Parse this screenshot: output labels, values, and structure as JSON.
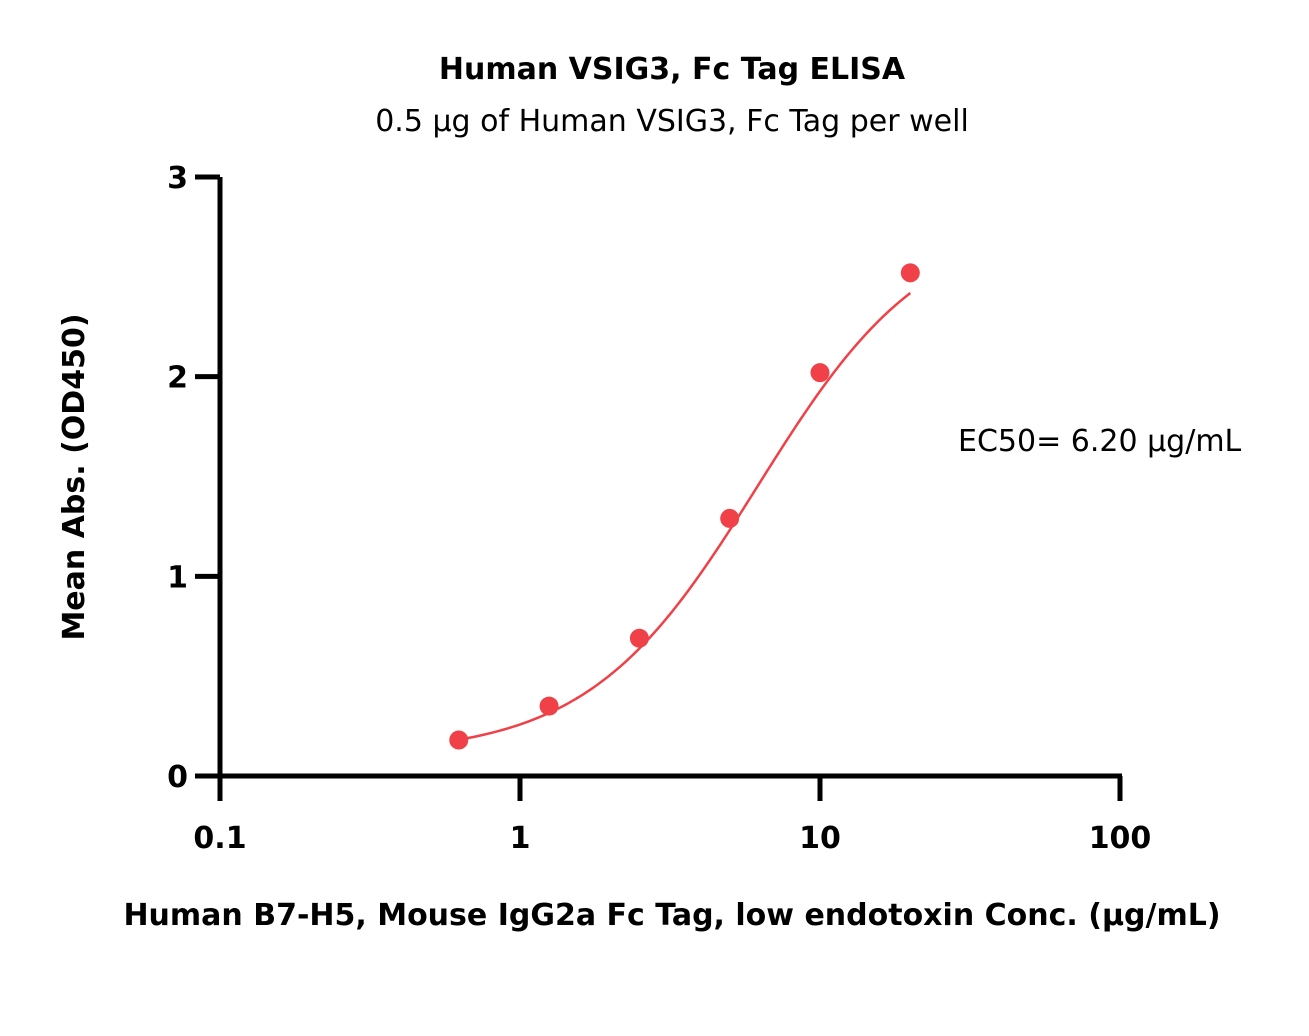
{
  "chart_data": {
    "type": "scatter",
    "title": "Human VSIG3, Fc Tag ELISA",
    "subtitle": "0.5 µg of Human VSIG3, Fc Tag per well",
    "xlabel": "Human B7-H5, Mouse IgG2a Fc Tag, low endotoxin Conc. (µg/mL)",
    "ylabel": "Mean Abs. (OD450)",
    "xscale": "log",
    "xlim": [
      0.1,
      100
    ],
    "ylim": [
      0,
      3
    ],
    "xticks": [
      "0.1",
      "1",
      "10",
      "100"
    ],
    "yticks": [
      "0",
      "1",
      "2",
      "3"
    ],
    "grid": false,
    "legend": "none",
    "annotation": "EC50= 6.20 µg/mL",
    "series": [
      {
        "color": "#f04048",
        "x": [
          0.625,
          1.25,
          2.5,
          5,
          10,
          20
        ],
        "y": [
          0.18,
          0.35,
          0.69,
          1.29,
          2.02,
          2.52
        ],
        "fit": {
          "model": "4PL",
          "bottom": 0.105,
          "top": 2.8,
          "ec50": 6.2,
          "hill": 1.54
        }
      }
    ]
  }
}
